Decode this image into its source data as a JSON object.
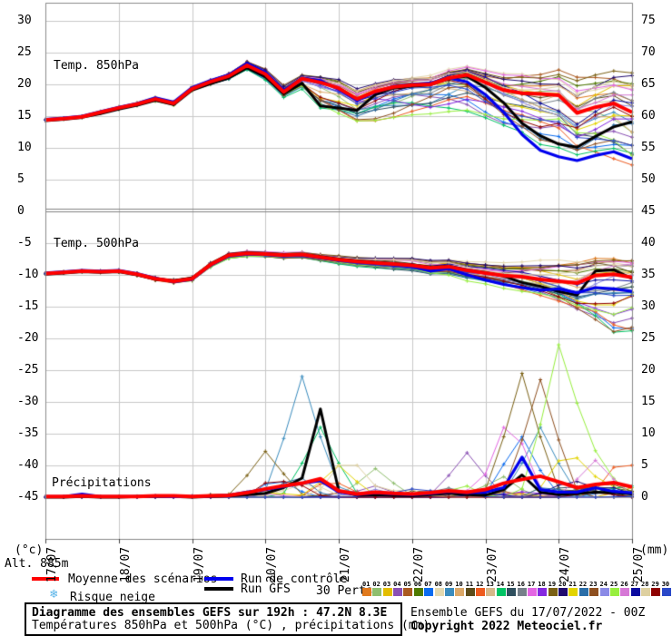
{
  "panels": {
    "t850_label": "Temp. 850hPa",
    "t500_label": "Temp. 500hPa",
    "precip_label": "Précipitations"
  },
  "axes": {
    "left_unit": "(°c)",
    "right_unit": "(mm)",
    "alt_label": "Alt. 885m",
    "left_ticks": [
      "30",
      "25",
      "20",
      "15",
      "10",
      "5",
      "0",
      "-5",
      "-10",
      "-15",
      "-20",
      "-25",
      "-30",
      "-35",
      "-40",
      "-45"
    ],
    "right_ticks": [
      "75",
      "70",
      "65",
      "60",
      "55",
      "50",
      "45",
      "40",
      "35",
      "30",
      "25",
      "20",
      "15",
      "10",
      "5",
      "0"
    ],
    "x_ticks": [
      "17/07",
      "18/07",
      "19/07",
      "20/07",
      "21/07",
      "22/07",
      "23/07",
      "24/07",
      "25/07"
    ]
  },
  "legend": {
    "mean": {
      "label": "Moyenne des scénarios",
      "color": "#ff0000"
    },
    "control": {
      "label": "Run de contrôle",
      "color": "#0000ee"
    },
    "gfs": {
      "label": "Run GFS",
      "color": "#000000"
    },
    "perts_label": "30 Perts.",
    "snow": {
      "label": "Risque neige",
      "icon": "❄",
      "color": "#5ab4e8"
    },
    "members": [
      {
        "n": "01",
        "color": "#e07a1e"
      },
      {
        "n": "02",
        "color": "#8fbe6e"
      },
      {
        "n": "03",
        "color": "#e3bd00"
      },
      {
        "n": "04",
        "color": "#8a50b4"
      },
      {
        "n": "05",
        "color": "#aa5a20"
      },
      {
        "n": "06",
        "color": "#4f7a00"
      },
      {
        "n": "07",
        "color": "#0a6cf0"
      },
      {
        "n": "08",
        "color": "#e4d9b0"
      },
      {
        "n": "09",
        "color": "#3a8cbe"
      },
      {
        "n": "10",
        "color": "#dca868"
      },
      {
        "n": "11",
        "color": "#5c4c1a"
      },
      {
        "n": "12",
        "color": "#ee5a1e"
      },
      {
        "n": "13",
        "color": "#d6b88a"
      },
      {
        "n": "14",
        "color": "#00c364"
      },
      {
        "n": "15",
        "color": "#2f4f5e"
      },
      {
        "n": "16",
        "color": "#76808a"
      },
      {
        "n": "17",
        "color": "#e366e3"
      },
      {
        "n": "18",
        "color": "#8428e0"
      },
      {
        "n": "19",
        "color": "#7a6014"
      },
      {
        "n": "20",
        "color": "#200a6e"
      },
      {
        "n": "21",
        "color": "#e3d400"
      },
      {
        "n": "22",
        "color": "#2a6ea8"
      },
      {
        "n": "23",
        "color": "#8e5020"
      },
      {
        "n": "24",
        "color": "#8a8ae6"
      },
      {
        "n": "25",
        "color": "#97ef3e"
      },
      {
        "n": "26",
        "color": "#d678d6"
      },
      {
        "n": "27",
        "color": "#0a0aa0"
      },
      {
        "n": "28",
        "color": "#ded0a0"
      },
      {
        "n": "29",
        "color": "#8e0000"
      },
      {
        "n": "30",
        "color": "#2a48c8"
      }
    ]
  },
  "footer": {
    "box_line1": "Diagramme des ensembles GEFS sur 192h : 47.2N 8.3E",
    "box_line2": "Températures 850hPa et 500hPa (°C) , précipitations (mm)",
    "right_line1": "Ensemble GEFS du 17/07/2022 - 00Z",
    "right_line2": "Copyright 2022 Meteociel.fr"
  },
  "chart_data": {
    "type": "line",
    "title": "Diagramme des ensembles GEFS sur 192h : 47.2N 8.3E",
    "x_hours_step": 6,
    "x_hours_max": 192,
    "x_dates": [
      "17/07",
      "18/07",
      "19/07",
      "20/07",
      "21/07",
      "22/07",
      "23/07",
      "24/07",
      "25/07"
    ],
    "left_axis": {
      "label": "(°c)",
      "min": -45,
      "max": 30,
      "step": 5,
      "grid": true,
      "zero_line_emphasized": true
    },
    "right_axis": {
      "label": "(mm)",
      "min": 0,
      "max": 75,
      "step": 5
    },
    "temp850": {
      "unit": "°C",
      "mean": [
        14.4,
        14.6,
        14.9,
        15.6,
        16.3,
        16.9,
        17.7,
        17.0,
        19.3,
        20.4,
        21.3,
        23.0,
        21.6,
        18.8,
        20.9,
        20.3,
        19.4,
        17.7,
        18.9,
        19.6,
        19.9,
        20.0,
        21.0,
        21.5,
        20.3,
        19.1,
        18.6,
        18.5,
        18.3,
        15.5,
        16.4,
        17.0,
        15.6
      ],
      "control": [
        14.5,
        14.7,
        15.0,
        15.7,
        16.4,
        17.0,
        17.9,
        17.2,
        19.5,
        20.6,
        21.5,
        23.3,
        21.9,
        19.1,
        21.0,
        20.6,
        19.2,
        17.5,
        18.8,
        19.7,
        20.0,
        20.2,
        21.0,
        20.4,
        18.4,
        15.6,
        12.1,
        9.6,
        8.6,
        8.0,
        8.8,
        9.4,
        8.3
      ],
      "gfs": [
        14.3,
        14.5,
        14.8,
        15.4,
        16.1,
        16.7,
        17.5,
        16.8,
        19.1,
        20.1,
        21.0,
        22.6,
        21.2,
        18.5,
        20.2,
        16.6,
        16.3,
        15.9,
        18.4,
        19.4,
        19.7,
        19.9,
        20.9,
        21.3,
        19.5,
        17.1,
        13.9,
        11.9,
        10.6,
        10.1,
        11.8,
        13.3,
        14.1
      ],
      "env_min": [
        14.0,
        14.2,
        14.4,
        15.0,
        15.5,
        16.1,
        16.6,
        16.2,
        18.5,
        19.3,
        20.2,
        21.6,
        19.8,
        17.2,
        18.0,
        13.5,
        12.8,
        12.3,
        12.0,
        12.2,
        12.6,
        13.0,
        13.5,
        14.0,
        13.5,
        12.5,
        11.5,
        9.5,
        8.5,
        7.3,
        7.6,
        7.9,
        7.3
      ],
      "env_max": [
        14.9,
        15.2,
        15.5,
        16.3,
        17.1,
        17.7,
        18.7,
        18.0,
        20.5,
        21.2,
        22.2,
        24.2,
        23.2,
        20.8,
        21.9,
        21.8,
        21.6,
        20.2,
        20.7,
        21.3,
        21.6,
        21.9,
        22.8,
        23.2,
        22.7,
        22.2,
        22.4,
        22.1,
        22.7,
        21.9,
        22.3,
        22.5,
        21.9
      ]
    },
    "temp500": {
      "unit": "°C",
      "mean": [
        -9.8,
        -9.6,
        -9.4,
        -9.5,
        -9.4,
        -9.9,
        -10.6,
        -11.0,
        -10.6,
        -8.4,
        -6.9,
        -6.6,
        -6.7,
        -6.9,
        -6.8,
        -7.2,
        -7.6,
        -7.9,
        -8.1,
        -8.3,
        -8.5,
        -8.9,
        -8.7,
        -9.3,
        -9.7,
        -10.1,
        -10.3,
        -10.7,
        -11.0,
        -11.3,
        -10.1,
        -9.9,
        -10.4
      ],
      "control": [
        -9.7,
        -9.5,
        -9.3,
        -9.4,
        -9.3,
        -9.8,
        -10.5,
        -11.1,
        -10.7,
        -8.5,
        -7.0,
        -6.7,
        -6.8,
        -7.0,
        -6.9,
        -7.3,
        -7.7,
        -8.0,
        -8.2,
        -8.4,
        -8.7,
        -9.4,
        -9.0,
        -10.0,
        -10.8,
        -11.5,
        -12.0,
        -12.4,
        -12.2,
        -12.8,
        -12.0,
        -12.2,
        -12.6
      ],
      "gfs": [
        -9.9,
        -9.7,
        -9.5,
        -9.6,
        -9.5,
        -10.0,
        -10.7,
        -10.9,
        -10.5,
        -8.3,
        -6.8,
        -6.5,
        -6.6,
        -6.8,
        -6.7,
        -7.1,
        -7.5,
        -7.8,
        -8.0,
        -8.2,
        -8.4,
        -8.8,
        -8.6,
        -9.2,
        -9.6,
        -10.2,
        -11.2,
        -11.8,
        -12.6,
        -13.2,
        -9.4,
        -9.2,
        -10.6
      ],
      "env_min": [
        -10.3,
        -10.1,
        -10.0,
        -10.1,
        -10.0,
        -10.6,
        -11.4,
        -11.8,
        -11.5,
        -9.3,
        -8.0,
        -7.6,
        -7.5,
        -7.8,
        -7.7,
        -8.2,
        -8.7,
        -9.1,
        -9.3,
        -9.6,
        -9.8,
        -10.4,
        -10.6,
        -11.4,
        -11.8,
        -12.5,
        -13.2,
        -14.0,
        -15.2,
        -16.6,
        -18.0,
        -19.5,
        -18.8
      ],
      "env_max": [
        -9.3,
        -9.1,
        -8.9,
        -9.0,
        -8.8,
        -9.3,
        -9.9,
        -10.3,
        -9.8,
        -7.6,
        -6.2,
        -5.9,
        -6.0,
        -6.1,
        -6.0,
        -6.4,
        -6.6,
        -6.9,
        -7.0,
        -7.0,
        -7.0,
        -7.3,
        -7.2,
        -7.5,
        -7.6,
        -7.7,
        -7.6,
        -7.3,
        -6.9,
        -6.7,
        -6.5,
        -6.5,
        -6.6
      ]
    },
    "precip": {
      "unit": "mm",
      "mean": [
        0.1,
        0.1,
        0.2,
        0.1,
        0.1,
        0.1,
        0.2,
        0.2,
        0.1,
        0.2,
        0.3,
        0.7,
        1.3,
        1.8,
        2.2,
        2.9,
        1.0,
        0.5,
        0.8,
        0.6,
        0.5,
        0.7,
        1.0,
        0.8,
        1.2,
        2.2,
        2.8,
        3.3,
        2.4,
        1.5,
        2.0,
        2.3,
        1.6
      ],
      "control": [
        0.1,
        0.1,
        0.5,
        0.1,
        0.1,
        0.1,
        0.2,
        0.1,
        0.1,
        0.2,
        0.3,
        0.8,
        1.2,
        1.7,
        2.2,
        2.6,
        0.8,
        0.4,
        0.7,
        0.5,
        0.4,
        0.6,
        0.9,
        0.7,
        0.8,
        1.5,
        6.3,
        1.2,
        0.8,
        0.8,
        1.5,
        0.9,
        0.7
      ],
      "gfs": [
        0.0,
        0.0,
        0.1,
        0.0,
        0.0,
        0.1,
        0.1,
        0.1,
        0.0,
        0.1,
        0.2,
        0.4,
        0.6,
        1.5,
        3.0,
        13.9,
        1.0,
        0.3,
        0.4,
        0.3,
        0.2,
        0.4,
        0.6,
        0.4,
        0.3,
        1.2,
        3.5,
        0.8,
        0.4,
        0.6,
        0.8,
        0.7,
        0.5
      ],
      "env_min": [
        0,
        0,
        0,
        0,
        0,
        0,
        0,
        0,
        0,
        0,
        0,
        0,
        0,
        0,
        0,
        0,
        0,
        0,
        0,
        0,
        0,
        0,
        0,
        0,
        0,
        0,
        0,
        0,
        0,
        0,
        0,
        0,
        0
      ],
      "env_max": [
        0.3,
        0.3,
        0.6,
        0.3,
        0.4,
        0.4,
        0.6,
        0.5,
        0.5,
        1.2,
        1.5,
        3.0,
        7.0,
        6.5,
        19.0,
        14.0,
        5.5,
        3.0,
        4.5,
        2.5,
        3.5,
        3.0,
        4.0,
        7.0,
        5.5,
        11.5,
        19.5,
        18.5,
        23.5,
        8.0,
        6.5,
        6.0,
        5.5
      ],
      "member_spikes": [
        {
          "member": 9,
          "hour": 84,
          "mm": 19.0
        },
        {
          "member": 14,
          "hour": 90,
          "mm": 11.0
        },
        {
          "member": 19,
          "hour": 72,
          "mm": 7.0
        },
        {
          "member": 28,
          "hour": 99,
          "mm": 6.0
        },
        {
          "member": 21,
          "hour": 96,
          "mm": 5.0
        },
        {
          "member": 2,
          "hour": 108,
          "mm": 4.5
        },
        {
          "member": 4,
          "hour": 138,
          "mm": 7.0
        },
        {
          "member": 17,
          "hour": 152,
          "mm": 11.5
        },
        {
          "member": 7,
          "hour": 156,
          "mm": 8.5
        },
        {
          "member": 19,
          "hour": 156,
          "mm": 19.5
        },
        {
          "member": 23,
          "hour": 162,
          "mm": 18.5
        },
        {
          "member": 9,
          "hour": 162,
          "mm": 11.0
        },
        {
          "member": 25,
          "hour": 168,
          "mm": 23.5
        },
        {
          "member": 21,
          "hour": 170,
          "mm": 5.5
        },
        {
          "member": 25,
          "hour": 180,
          "mm": 6.0
        },
        {
          "member": 26,
          "hour": 180,
          "mm": 5.8
        },
        {
          "member": 12,
          "hour": 189,
          "mm": 5.0
        }
      ]
    }
  }
}
